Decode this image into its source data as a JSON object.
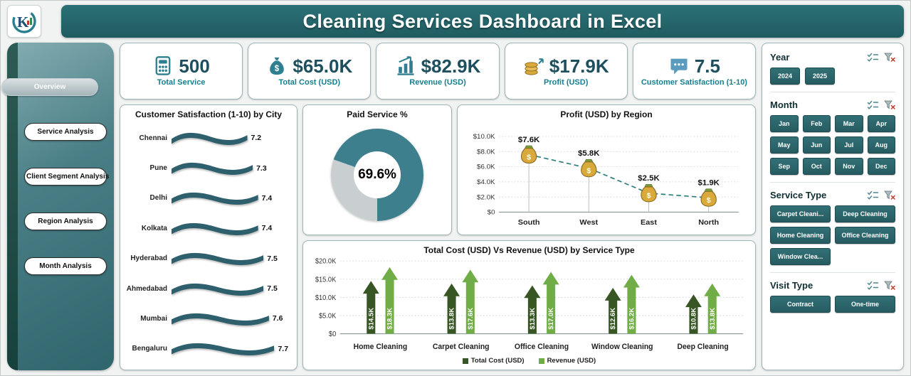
{
  "header": {
    "title": "Cleaning Services Dashboard in Excel"
  },
  "sidebar": {
    "items": [
      {
        "label": "Overview",
        "active": true
      },
      {
        "label": "Service Analysis",
        "active": false
      },
      {
        "label": "Client Segment Analysis",
        "active": false
      },
      {
        "label": "Region Analysis",
        "active": false
      },
      {
        "label": "Month Analysis",
        "active": false
      }
    ]
  },
  "kpis": [
    {
      "icon": "calculator-icon",
      "value": "500",
      "label": "Total Service"
    },
    {
      "icon": "money-bag-icon",
      "value": "$65.0K",
      "label": "Total Cost (USD)"
    },
    {
      "icon": "revenue-chart-icon",
      "value": "$82.9K",
      "label": "Revenue (USD)"
    },
    {
      "icon": "coins-icon",
      "value": "$17.9K",
      "label": "Profit (USD)"
    },
    {
      "icon": "feedback-icon",
      "value": "7.5",
      "label": "Customer Satisfaction (1-10)"
    }
  ],
  "chart_data": [
    {
      "type": "bar",
      "orientation": "horizontal",
      "title": "Customer Satisfaction (1-10) by City",
      "categories": [
        "Chennai",
        "Pune",
        "Delhi",
        "Kolkata",
        "Hyderabad",
        "Ahmedabad",
        "Mumbai",
        "Bengaluru"
      ],
      "values": [
        7.2,
        7.3,
        7.4,
        7.4,
        7.5,
        7.5,
        7.6,
        7.7
      ],
      "bar_color": "#2e5f6c"
    },
    {
      "type": "gauge",
      "title": "Paid Service %",
      "value": 69.6,
      "value_label": "69.6%",
      "colors": {
        "filled": "#3d7f8d",
        "empty": "#c9cfd1"
      }
    },
    {
      "type": "line",
      "title": "Profit (USD) by Region",
      "categories": [
        "South",
        "West",
        "East",
        "North"
      ],
      "values": [
        7.6,
        5.8,
        2.5,
        1.9
      ],
      "value_labels": [
        "$7.6K",
        "$5.8K",
        "$2.5K",
        "$1.9K"
      ],
      "ylim": [
        0,
        10
      ],
      "ytick_labels": [
        "$0",
        "$2.0K",
        "$4.0K",
        "$6.0K",
        "$8.0K",
        "$10.0K"
      ],
      "line_style": "dashed",
      "line_color": "#2e7d7d",
      "marker": "money-bag"
    },
    {
      "type": "bar",
      "title": "Total Cost (USD) Vs Revenue (USD) by Service Type",
      "categories": [
        "Home Cleaning",
        "Carpet Cleaning",
        "Office Cleaning",
        "Window Cleaning",
        "Deep Cleaning"
      ],
      "series": [
        {
          "name": "Total Cost (USD)",
          "color": "#375623",
          "values": [
            14.5,
            13.8,
            13.3,
            12.6,
            10.8
          ],
          "value_labels": [
            "$14.5K",
            "$13.8K",
            "$13.3K",
            "$12.6K",
            "$10.8K"
          ]
        },
        {
          "name": "Revenue (USD)",
          "color": "#70ad47",
          "values": [
            18.3,
            17.6,
            17.0,
            16.2,
            13.8
          ],
          "value_labels": [
            "$18.3K",
            "$17.6K",
            "$17.0K",
            "$16.2K",
            "$13.8K"
          ]
        }
      ],
      "ylim": [
        0,
        20
      ],
      "ytick_labels": [
        "$0",
        "$5.0K",
        "$10.0K",
        "$15.0K",
        "$20.0K"
      ],
      "legend_position": "bottom"
    }
  ],
  "slicer_icons": [
    "multiselect-icon",
    "clear-filter-icon"
  ],
  "filters": [
    {
      "title": "Year",
      "options": [
        "2024",
        "2025"
      ],
      "layout": "row"
    },
    {
      "title": "Month",
      "options": [
        "Jan",
        "Feb",
        "Mar",
        "Apr",
        "May",
        "Jun",
        "Jul",
        "Aug",
        "Sep",
        "Oct",
        "Nov",
        "Dec"
      ],
      "layout": "grid-4"
    },
    {
      "title": "Service Type",
      "options": [
        "Carpet Cleani...",
        "Deep Cleaning",
        "Home Cleaning",
        "Office Cleaning",
        "Window Clea..."
      ],
      "layout": "grid-2"
    },
    {
      "title": "Visit Type",
      "options": [
        "Contract",
        "One-time"
      ],
      "layout": "grid-2"
    }
  ]
}
